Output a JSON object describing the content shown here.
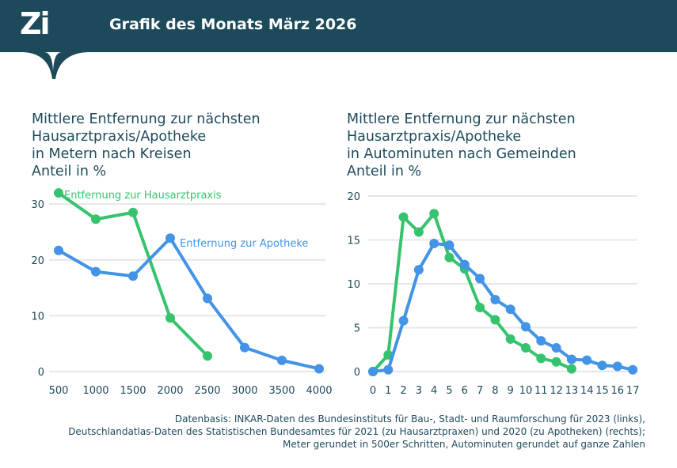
{
  "header": {
    "logo": "Zi",
    "title": "Grafik des Monats März 2026"
  },
  "colors": {
    "header_bg": "#1d4a5b",
    "green": "#35c46d",
    "blue": "#4393e6",
    "grid": "#e4e7ea",
    "text": "#1d4a5b"
  },
  "chart_data": [
    {
      "type": "line",
      "title_lines": [
        "Mittlere Entfernung zur nächsten",
        "Hausarztpraxis/Apotheke",
        "in Metern nach Kreisen"
      ],
      "ylabel": "Anteil in %",
      "x": [
        500,
        1000,
        1500,
        2000,
        2500,
        3000,
        3500,
        4000
      ],
      "x_tick_labels": [
        "500",
        "1000",
        "1500",
        "2000",
        "2500",
        "3000",
        "3500",
        "4000"
      ],
      "y_ticks": [
        0,
        10,
        20,
        30
      ],
      "ylim": [
        0,
        33
      ],
      "series": [
        {
          "name": "Entfernung zur Hausarztpraxis",
          "color": "#35c46d",
          "x": [
            500,
            1000,
            1500,
            2000,
            2500
          ],
          "values": [
            32.0,
            27.3,
            28.5,
            9.6,
            2.8
          ]
        },
        {
          "name": "Entfernung zur Apotheke",
          "color": "#4393e6",
          "x": [
            500,
            1000,
            1500,
            2000,
            2500,
            3000,
            3500,
            4000
          ],
          "values": [
            21.7,
            17.9,
            17.1,
            23.9,
            13.1,
            4.3,
            2.0,
            0.5
          ]
        }
      ]
    },
    {
      "type": "line",
      "title_lines": [
        "Mittlere Entfernung zur nächsten",
        "Hausarztpraxis/Apotheke",
        "in Autominuten nach Gemeinden"
      ],
      "ylabel": "Anteil in %",
      "x_tick_labels": [
        "0",
        "1",
        "2",
        "3",
        "4",
        "5",
        "6",
        "7",
        "8",
        "9",
        "10",
        "11",
        "12",
        "13",
        "14",
        "15",
        "16",
        "17"
      ],
      "y_ticks": [
        0,
        5,
        10,
        15,
        20
      ],
      "ylim": [
        0,
        20
      ],
      "series": [
        {
          "name": "Hausarztpraxis",
          "color": "#35c46d",
          "x": [
            0,
            1,
            2,
            3,
            4,
            5,
            6,
            7,
            8,
            9,
            10,
            11,
            12,
            13
          ],
          "values": [
            0.0,
            1.9,
            17.6,
            15.9,
            18.0,
            13.0,
            11.7,
            7.3,
            5.9,
            3.7,
            2.7,
            1.5,
            1.1,
            0.3
          ]
        },
        {
          "name": "Apotheke",
          "color": "#4393e6",
          "x": [
            0,
            1,
            2,
            3,
            4,
            5,
            6,
            7,
            8,
            9,
            10,
            11,
            12,
            13,
            14,
            15,
            16,
            17
          ],
          "values": [
            0.0,
            0.2,
            5.8,
            11.6,
            14.6,
            14.4,
            12.2,
            10.6,
            8.2,
            7.1,
            5.1,
            3.5,
            2.7,
            1.4,
            1.3,
            0.7,
            0.6,
            0.2
          ]
        }
      ]
    }
  ],
  "footer": {
    "lines": [
      "Datenbasis: INKAR-Daten des Bundesinstituts für Bau-, Stadt- und Raumforschung für 2023 (links),",
      "Deutschlandatlas-Daten des Statistischen Bundesamtes für 2021 (zu Hausarztpraxen) und 2020 (zu Apotheken) (rechts);",
      "Meter gerundet in 500er Schritten, Autominuten gerundet auf ganze Zahlen"
    ]
  }
}
